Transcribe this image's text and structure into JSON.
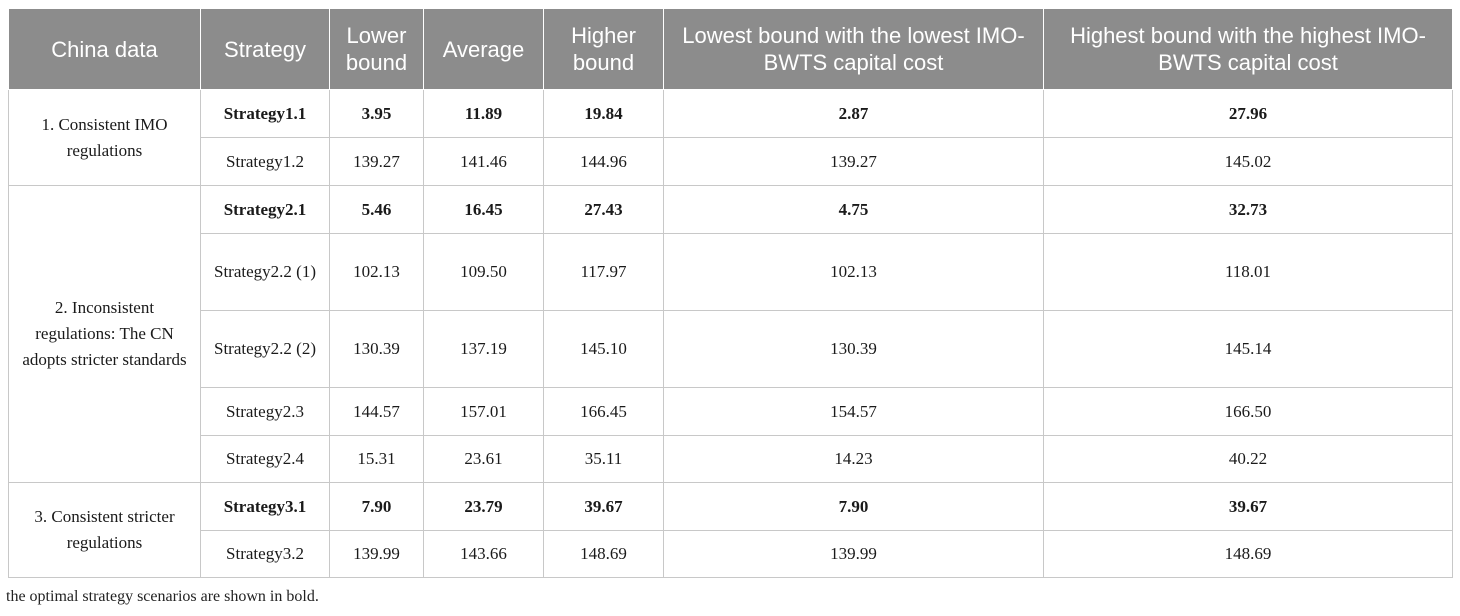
{
  "table": {
    "headers": [
      "China data",
      "Strategy",
      "Lower bound",
      "Average",
      "Higher bound",
      "Lowest bound with the lowest IMO-BWTS capital cost",
      "Highest bound with the highest IMO-BWTS capital cost"
    ],
    "groups": [
      {
        "label": "1. Consistent IMO regulations"
      },
      {
        "label": "2. Inconsistent regulations: The CN adopts stricter standards"
      },
      {
        "label": "3. Consistent stricter regulations"
      }
    ],
    "rows": [
      {
        "strategy": "Strategy1.1",
        "lower": "3.95",
        "average": "11.89",
        "higher": "19.84",
        "lowest_bound": "2.87",
        "highest_bound": "27.96",
        "bold": true
      },
      {
        "strategy": "Strategy1.2",
        "lower": "139.27",
        "average": "141.46",
        "higher": "144.96",
        "lowest_bound": "139.27",
        "highest_bound": "145.02",
        "bold": false
      },
      {
        "strategy": "Strategy2.1",
        "lower": "5.46",
        "average": "16.45",
        "higher": "27.43",
        "lowest_bound": "4.75",
        "highest_bound": "32.73",
        "bold": true
      },
      {
        "strategy": "Strategy2.2 (1)",
        "lower": "102.13",
        "average": "109.50",
        "higher": "117.97",
        "lowest_bound": "102.13",
        "highest_bound": "118.01",
        "bold": false
      },
      {
        "strategy": "Strategy2.2 (2)",
        "lower": "130.39",
        "average": "137.19",
        "higher": "145.10",
        "lowest_bound": "130.39",
        "highest_bound": "145.14",
        "bold": false
      },
      {
        "strategy": "Strategy2.3",
        "lower": "144.57",
        "average": "157.01",
        "higher": "166.45",
        "lowest_bound": "154.57",
        "highest_bound": "166.50",
        "bold": false
      },
      {
        "strategy": "Strategy2.4",
        "lower": "15.31",
        "average": "23.61",
        "higher": "35.11",
        "lowest_bound": "14.23",
        "highest_bound": "40.22",
        "bold": false
      },
      {
        "strategy": "Strategy3.1",
        "lower": "7.90",
        "average": "23.79",
        "higher": "39.67",
        "lowest_bound": "7.90",
        "highest_bound": "39.67",
        "bold": true
      },
      {
        "strategy": "Strategy3.2",
        "lower": "139.99",
        "average": "143.66",
        "higher": "148.69",
        "lowest_bound": "139.99",
        "highest_bound": "148.69",
        "bold": false
      }
    ]
  },
  "footnote": "the optimal strategy scenarios are shown in bold.",
  "colors": {
    "header_bg": "#8c8c8c",
    "header_text": "#ffffff",
    "border": "#c8c8c8"
  }
}
